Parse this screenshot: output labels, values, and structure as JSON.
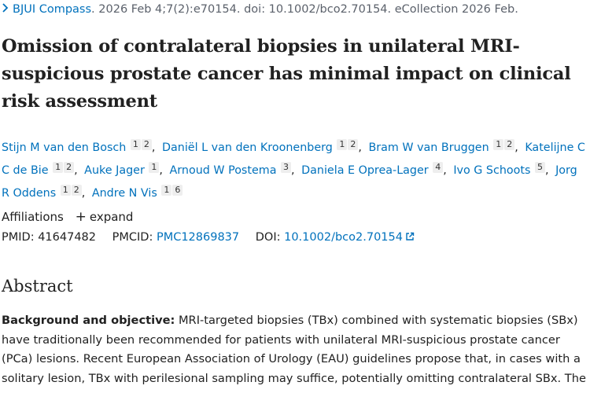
{
  "citation": {
    "journal": "BJUI Compass",
    "details": ". 2026 Feb 4;7(2):e70154. doi: 10.1002/bco2.70154. eCollection 2026 Feb."
  },
  "title": "Omission of contralateral biopsies in unilateral MRI-suspicious prostate cancer has minimal impact on clinical risk assessment",
  "authors": [
    {
      "name": "Stijn M van den Bosch",
      "affs": [
        "1",
        "2"
      ]
    },
    {
      "name": "Daniël L van den Kroonenberg",
      "affs": [
        "1",
        "2"
      ]
    },
    {
      "name": "Bram W van Bruggen",
      "affs": [
        "1",
        "2"
      ]
    },
    {
      "name": "Katelijne C C de Bie",
      "affs": [
        "1",
        "2"
      ]
    },
    {
      "name": "Auke Jager",
      "affs": [
        "1"
      ]
    },
    {
      "name": "Arnoud W Postema",
      "affs": [
        "3"
      ]
    },
    {
      "name": "Daniela E Oprea-Lager",
      "affs": [
        "4"
      ]
    },
    {
      "name": "Ivo G Schoots",
      "affs": [
        "5"
      ]
    },
    {
      "name": "Jorg R Oddens",
      "affs": [
        "1",
        "2"
      ]
    },
    {
      "name": "Andre N Vis",
      "affs": [
        "1",
        "6"
      ]
    }
  ],
  "affiliations": {
    "label": "Affiliations",
    "expand": "expand"
  },
  "ids": {
    "pmid_label": "PMID:",
    "pmid": "41647482",
    "pmcid_label": "PMCID:",
    "pmcid": "PMC12869837",
    "doi_label": "DOI:",
    "doi": "10.1002/bco2.70154"
  },
  "abstract": {
    "heading": "Abstract",
    "section_label": "Background and objective:",
    "text": "MRI-targeted biopsies (TBx) combined with systematic biopsies (SBx) have traditionally been recommended for patients with unilateral MRI-suspicious prostate cancer (PCa) lesions. Recent European Association of Urology (EAU) guidelines propose that, in cases with a solitary lesion, TBx with perilesional sampling may suffice, potentially omitting contralateral SBx. The"
  },
  "colors": {
    "link": "#0071bc",
    "text": "#212121",
    "muted": "#5b616b",
    "badge_bg": "#eeeeee"
  }
}
